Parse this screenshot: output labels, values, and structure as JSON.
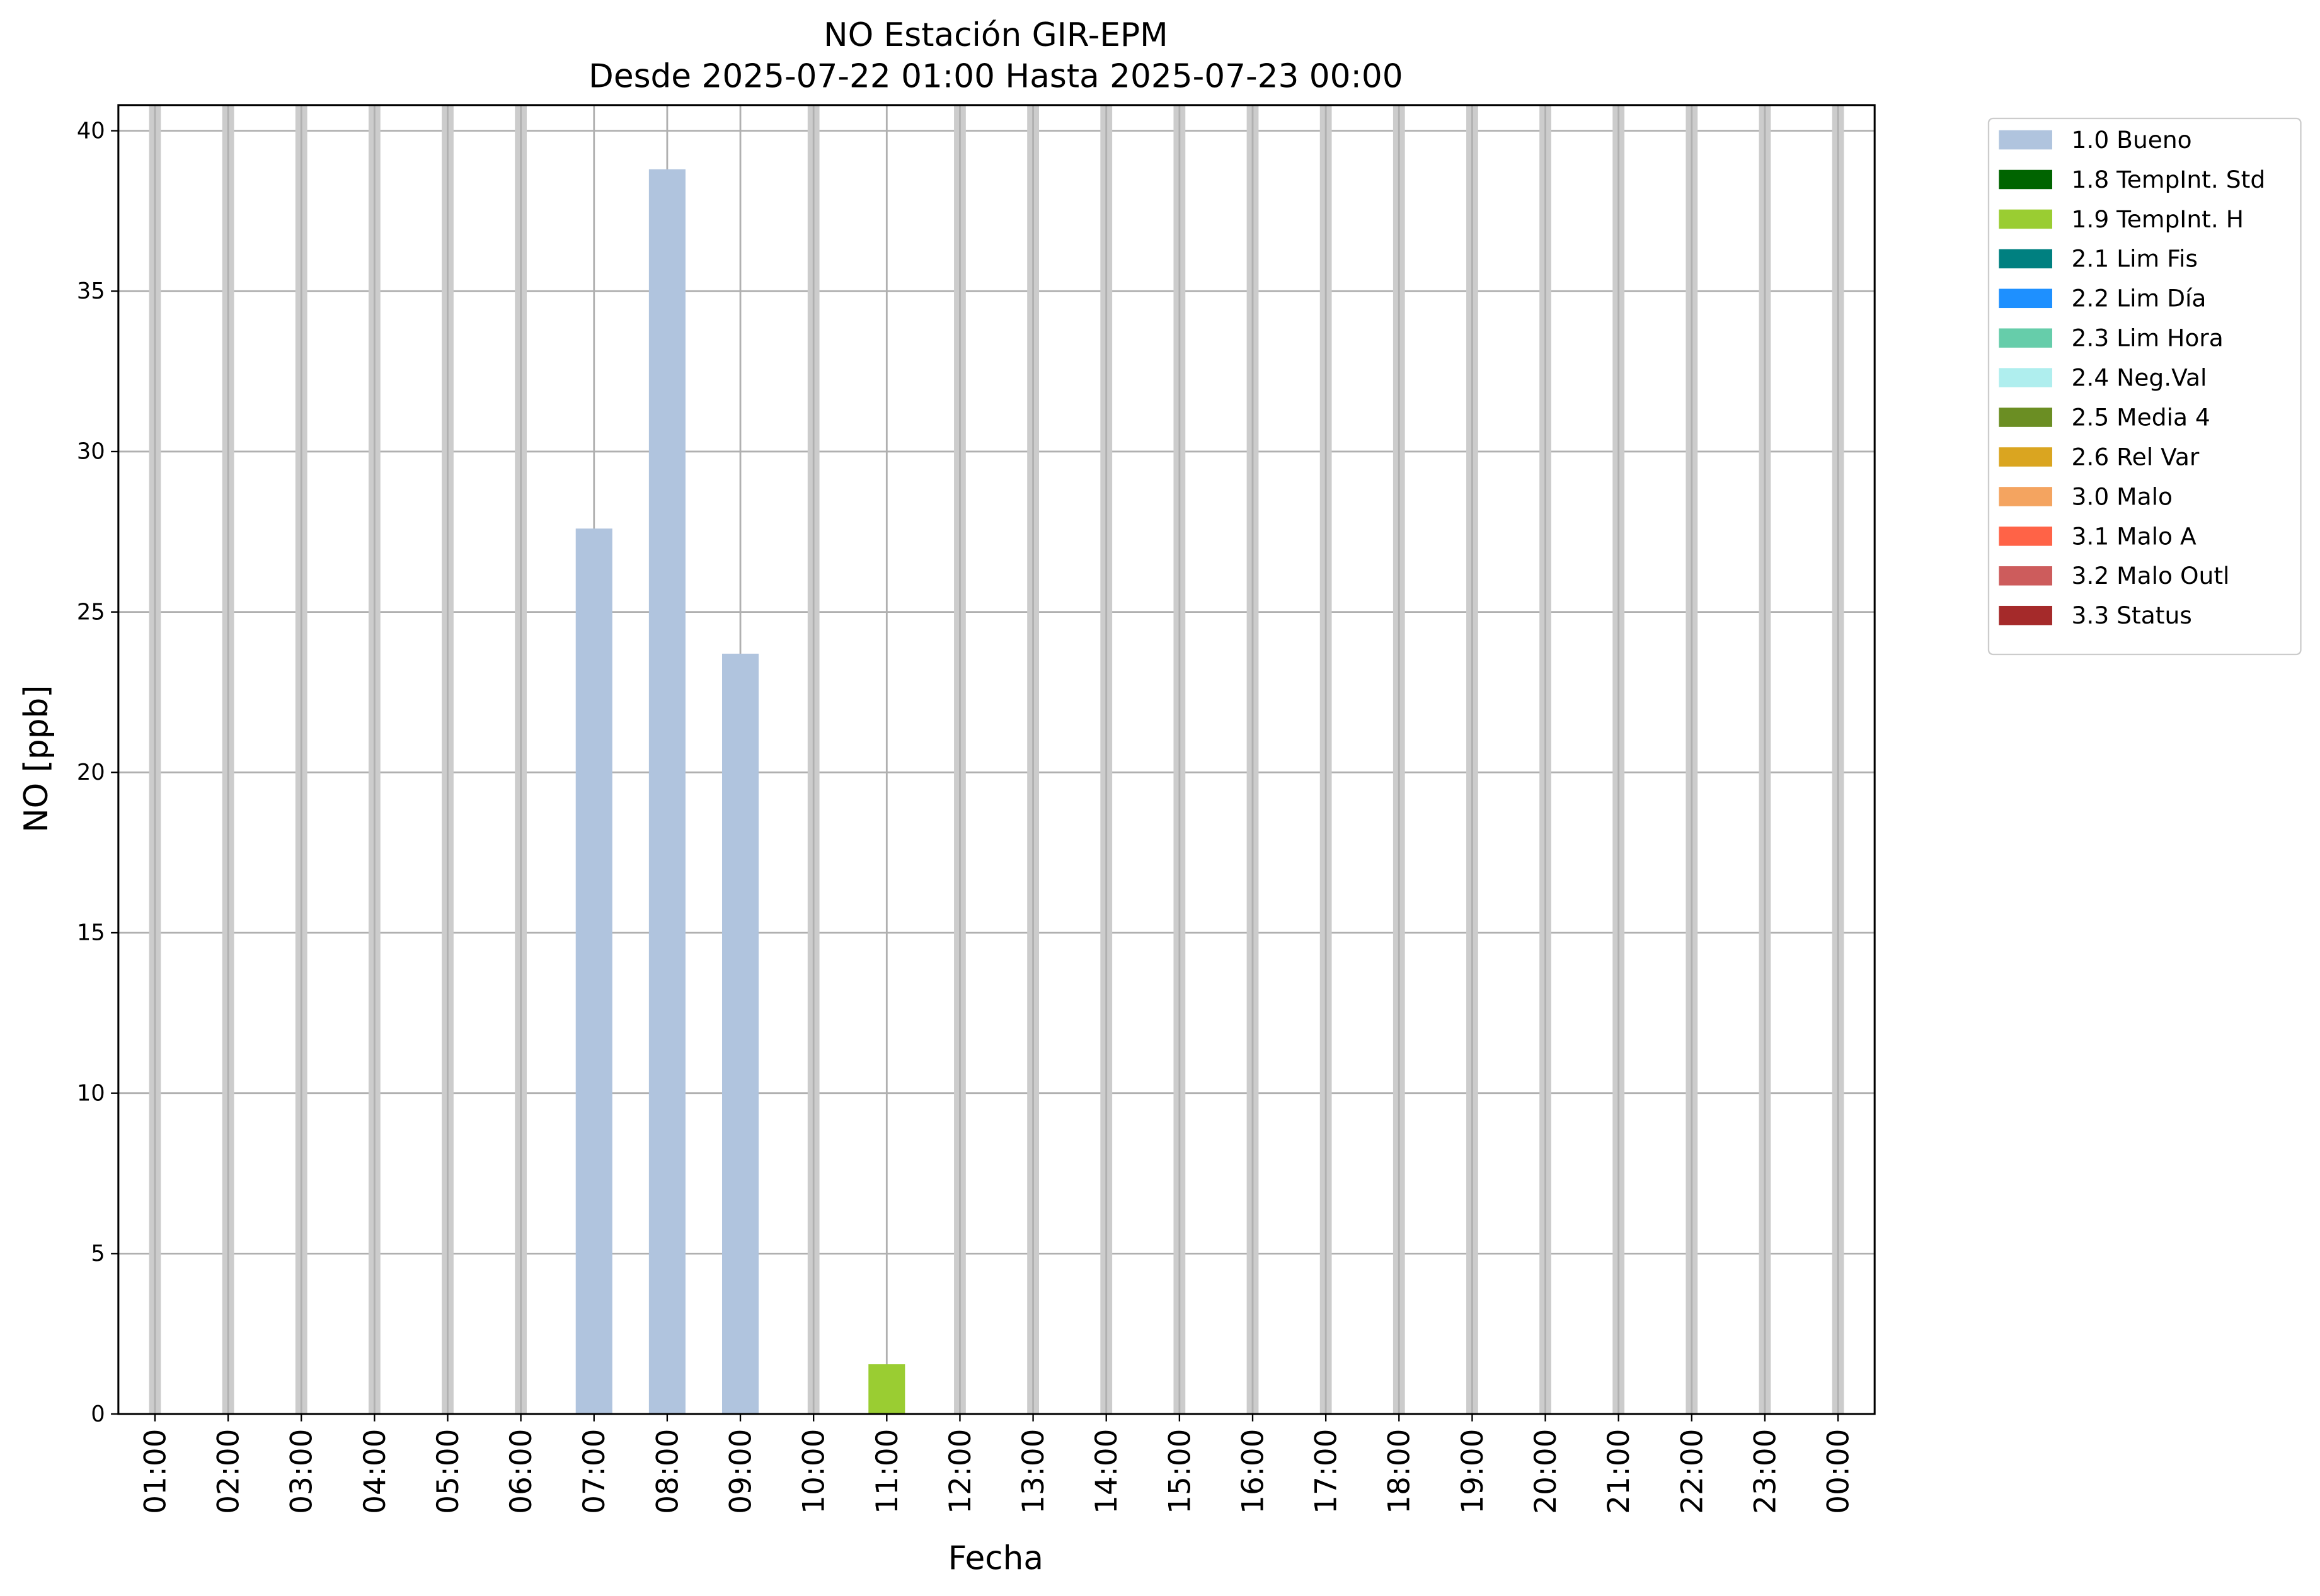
{
  "chart_data": {
    "type": "bar",
    "stacked": true,
    "title": "NO Estación GIR-EPM",
    "subtitle": "Desde 2025-07-22 01:00 Hasta 2025-07-23 00:00",
    "x_label": "Fecha",
    "y_label": "NO [ppb]",
    "categories": [
      "01:00",
      "02:00",
      "03:00",
      "04:00",
      "05:00",
      "06:00",
      "07:00",
      "08:00",
      "09:00",
      "10:00",
      "11:00",
      "12:00",
      "13:00",
      "14:00",
      "15:00",
      "16:00",
      "17:00",
      "18:00",
      "19:00",
      "20:00",
      "21:00",
      "22:00",
      "23:00",
      "00:00"
    ],
    "series": [
      {
        "name": "1.0 Bueno",
        "color": "#b0c4de",
        "values": [
          null,
          null,
          null,
          null,
          null,
          null,
          27.6,
          38.8,
          23.7,
          null,
          null,
          null,
          null,
          null,
          null,
          null,
          null,
          null,
          null,
          null,
          null,
          null,
          null,
          null
        ]
      },
      {
        "name": "1.8 TempInt. Std",
        "color": "#006400",
        "values": [
          null,
          null,
          null,
          null,
          null,
          null,
          null,
          null,
          null,
          null,
          null,
          null,
          null,
          null,
          null,
          null,
          null,
          null,
          null,
          null,
          null,
          null,
          null,
          null
        ]
      },
      {
        "name": "1.9 TempInt. H",
        "color": "#9acd32",
        "values": [
          null,
          null,
          null,
          null,
          null,
          null,
          null,
          null,
          null,
          null,
          1.55,
          null,
          null,
          null,
          null,
          null,
          null,
          null,
          null,
          null,
          null,
          null,
          null,
          null
        ]
      },
      {
        "name": "2.1 Lim Fis",
        "color": "#008080",
        "values": [
          null,
          null,
          null,
          null,
          null,
          null,
          null,
          null,
          null,
          null,
          null,
          null,
          null,
          null,
          null,
          null,
          null,
          null,
          null,
          null,
          null,
          null,
          null,
          null
        ]
      },
      {
        "name": "2.2 Lim Día",
        "color": "#1e90ff",
        "values": [
          null,
          null,
          null,
          null,
          null,
          null,
          null,
          null,
          null,
          null,
          null,
          null,
          null,
          null,
          null,
          null,
          null,
          null,
          null,
          null,
          null,
          null,
          null,
          null
        ]
      },
      {
        "name": "2.3 Lim Hora",
        "color": "#66cdaa",
        "values": [
          null,
          null,
          null,
          null,
          null,
          null,
          null,
          null,
          null,
          null,
          null,
          null,
          null,
          null,
          null,
          null,
          null,
          null,
          null,
          null,
          null,
          null,
          null,
          null
        ]
      },
      {
        "name": "2.4 Neg.Val",
        "color": "#afeeee",
        "values": [
          null,
          null,
          null,
          null,
          null,
          null,
          null,
          null,
          null,
          null,
          null,
          null,
          null,
          null,
          null,
          null,
          null,
          null,
          null,
          null,
          null,
          null,
          null,
          null
        ]
      },
      {
        "name": "2.5 Media 4",
        "color": "#6b8e23",
        "values": [
          null,
          null,
          null,
          null,
          null,
          null,
          null,
          null,
          null,
          null,
          null,
          null,
          null,
          null,
          null,
          null,
          null,
          null,
          null,
          null,
          null,
          null,
          null,
          null
        ]
      },
      {
        "name": "2.6 Rel Var",
        "color": "#daa520",
        "values": [
          null,
          null,
          null,
          null,
          null,
          null,
          null,
          null,
          null,
          null,
          null,
          null,
          null,
          null,
          null,
          null,
          null,
          null,
          null,
          null,
          null,
          null,
          null,
          null
        ]
      },
      {
        "name": "3.0 Malo",
        "color": "#f4a460",
        "values": [
          null,
          null,
          null,
          null,
          null,
          null,
          null,
          null,
          null,
          null,
          null,
          null,
          null,
          null,
          null,
          null,
          null,
          null,
          null,
          null,
          null,
          null,
          null,
          null
        ]
      },
      {
        "name": "3.1 Malo A",
        "color": "#ff6347",
        "values": [
          null,
          null,
          null,
          null,
          null,
          null,
          null,
          null,
          null,
          null,
          null,
          null,
          null,
          null,
          null,
          null,
          null,
          null,
          null,
          null,
          null,
          null,
          null,
          null
        ]
      },
      {
        "name": "3.2 Malo Outl",
        "color": "#cd5c5c",
        "values": [
          null,
          null,
          null,
          null,
          null,
          null,
          null,
          null,
          null,
          null,
          null,
          null,
          null,
          null,
          null,
          null,
          null,
          null,
          null,
          null,
          null,
          null,
          null,
          null
        ]
      },
      {
        "name": "3.3 Status",
        "color": "#a52a2a",
        "values": [
          null,
          null,
          null,
          null,
          null,
          null,
          null,
          null,
          null,
          null,
          null,
          null,
          null,
          null,
          null,
          null,
          null,
          null,
          null,
          null,
          null,
          null,
          null,
          null
        ]
      }
    ],
    "ylim": [
      0,
      40.8
    ],
    "yticks": [
      0,
      5,
      10,
      15,
      20,
      25,
      30,
      35,
      40
    ],
    "grid": true,
    "legend": "outside upper right"
  }
}
